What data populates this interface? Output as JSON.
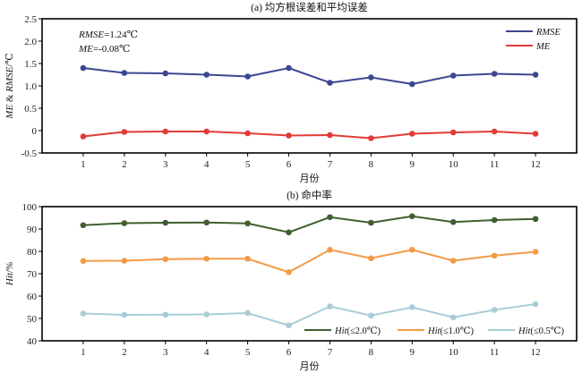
{
  "chart_data": [
    {
      "type": "line",
      "title": "(a) 均方根误差和平均误差",
      "xlabel": "月份",
      "ylabel": "ME & RMSE/℃",
      "ylabel_parts": [
        {
          "text": "ME",
          "italic": true
        },
        {
          "text": " & ",
          "italic": false
        },
        {
          "text": "RMSE",
          "italic": true
        },
        {
          "text": "/℃",
          "italic": false
        }
      ],
      "x": [
        1,
        2,
        3,
        4,
        5,
        6,
        7,
        8,
        9,
        10,
        11,
        12
      ],
      "xlim": [
        0,
        13
      ],
      "ylim": [
        -0.5,
        2.5
      ],
      "yticks": [
        -0.5,
        0,
        0.5,
        1.0,
        1.5,
        2.0,
        2.5
      ],
      "ytick_labels": [
        "-0.5",
        "0",
        "0.5",
        "1.0",
        "1.5",
        "2.0",
        "2.5"
      ],
      "xtick_labels": [
        "1",
        "2",
        "3",
        "4",
        "5",
        "6",
        "7",
        "8",
        "9",
        "10",
        "11",
        "12"
      ],
      "legend_position": "top-right",
      "grid": false,
      "annotations": [
        {
          "label": "RMSE",
          "value": "=1.24℃"
        },
        {
          "label": "ME",
          "value": "=-0.08℃"
        }
      ],
      "series": [
        {
          "name": "RMSE",
          "color": "#3c4792",
          "values": [
            1.4,
            1.29,
            1.28,
            1.25,
            1.21,
            1.4,
            1.07,
            1.19,
            1.04,
            1.23,
            1.27,
            1.25
          ]
        },
        {
          "name": "ME",
          "color": "#e23b36",
          "values": [
            -0.13,
            -0.03,
            -0.02,
            -0.02,
            -0.06,
            -0.11,
            -0.1,
            -0.17,
            -0.07,
            -0.04,
            -0.02,
            -0.07
          ]
        }
      ]
    },
    {
      "type": "line",
      "title": "(b) 命中率",
      "xlabel": "月份",
      "ylabel": "Hit/%",
      "ylabel_parts": [
        {
          "text": "Hit",
          "italic": true
        },
        {
          "text": "/%",
          "italic": false
        }
      ],
      "x": [
        1,
        2,
        3,
        4,
        5,
        6,
        7,
        8,
        9,
        10,
        11,
        12
      ],
      "xlim": [
        0,
        13
      ],
      "ylim": [
        40,
        100
      ],
      "yticks": [
        40,
        50,
        60,
        70,
        80,
        90,
        100
      ],
      "ytick_labels": [
        "40",
        "50",
        "60",
        "70",
        "80",
        "90",
        "100"
      ],
      "xtick_labels": [
        "1",
        "2",
        "3",
        "4",
        "5",
        "6",
        "7",
        "8",
        "9",
        "10",
        "11",
        "12"
      ],
      "legend_position": "bottom-right",
      "grid": false,
      "series": [
        {
          "name": "Hit(≤2.0℃)",
          "label_italic": "Hit",
          "label_rest": "(≤2.0℃)",
          "color": "#3f5f2f",
          "values": [
            91.7,
            92.6,
            92.8,
            92.9,
            92.5,
            88.5,
            95.3,
            92.8,
            95.7,
            93.1,
            94.0,
            94.5
          ]
        },
        {
          "name": "Hit(≤1.0℃)",
          "label_italic": "Hit",
          "label_rest": "(≤1.0℃)",
          "color": "#f29b45",
          "values": [
            75.7,
            75.8,
            76.5,
            76.7,
            76.7,
            70.7,
            80.7,
            76.9,
            80.7,
            75.8,
            78.1,
            79.8
          ]
        },
        {
          "name": "Hit(≤0.5℃)",
          "label_italic": "Hit",
          "label_rest": "(≤0.5℃)",
          "color": "#a9cdd6",
          "values": [
            52.2,
            51.6,
            51.7,
            51.8,
            52.4,
            46.9,
            55.4,
            51.3,
            55.0,
            50.5,
            53.8,
            56.4
          ]
        }
      ]
    }
  ]
}
